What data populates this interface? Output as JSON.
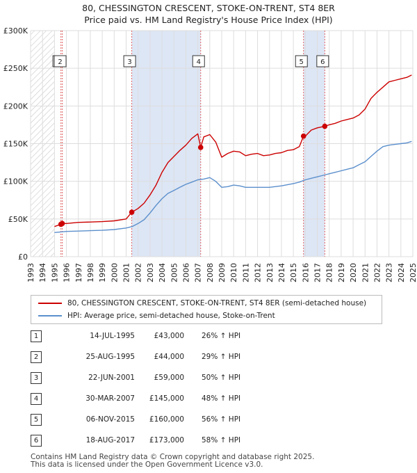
{
  "title_line1": "80, CHESSINGTON CRESCENT, STOKE-ON-TRENT, ST4 8ER",
  "title_line2": "Price paid vs. HM Land Registry's House Price Index (HPI)",
  "legend": {
    "property_label": "80, CHESSINGTON CRESCENT, STOKE-ON-TRENT, ST4 8ER (semi-detached house)",
    "hpi_label": "HPI: Average price, semi-detached house, Stoke-on-Trent"
  },
  "colors": {
    "property_line": "#cc0000",
    "hpi_line": "#5b8fcc",
    "marker_vline": "#e06060",
    "shade": "#dde6f5",
    "grid": "#dddddd"
  },
  "transactions": [
    {
      "num": "1",
      "date": "14-JUL-1995",
      "price": "£43,000",
      "hpi": "26% ↑ HPI"
    },
    {
      "num": "2",
      "date": "25-AUG-1995",
      "price": "£44,000",
      "hpi": "29% ↑ HPI"
    },
    {
      "num": "3",
      "date": "22-JUN-2001",
      "price": "£59,000",
      "hpi": "50% ↑ HPI"
    },
    {
      "num": "4",
      "date": "30-MAR-2007",
      "price": "£145,000",
      "hpi": "48% ↑ HPI"
    },
    {
      "num": "5",
      "date": "06-NOV-2015",
      "price": "£160,000",
      "hpi": "56% ↑ HPI"
    },
    {
      "num": "6",
      "date": "18-AUG-2017",
      "price": "£173,000",
      "hpi": "58% ↑ HPI"
    }
  ],
  "footer_line1": "Contains HM Land Registry data © Crown copyright and database right 2025.",
  "footer_line2": "This data is licensed under the Open Government Licence v3.0.",
  "chart_data": {
    "type": "line",
    "title": "80, CHESSINGTON CRESCENT, STOKE-ON-TRENT, ST4 8ER",
    "subtitle": "Price paid vs. HM Land Registry's House Price Index (HPI)",
    "xlabel": "",
    "ylabel": "",
    "xlim": [
      1993,
      2025
    ],
    "ylim": [
      0,
      300000
    ],
    "y_ticks": [
      {
        "value": 0,
        "label": "£0"
      },
      {
        "value": 50000,
        "label": "£50K"
      },
      {
        "value": 100000,
        "label": "£100K"
      },
      {
        "value": 150000,
        "label": "£150K"
      },
      {
        "value": 200000,
        "label": "£200K"
      },
      {
        "value": 250000,
        "label": "£250K"
      },
      {
        "value": 300000,
        "label": "£300K"
      }
    ],
    "x_ticks": [
      "1993",
      "1994",
      "1995",
      "1996",
      "1997",
      "1998",
      "1999",
      "2000",
      "2001",
      "2002",
      "2003",
      "2004",
      "2005",
      "2006",
      "2007",
      "2008",
      "2009",
      "2010",
      "2011",
      "2012",
      "2013",
      "2014",
      "2015",
      "2016",
      "2017",
      "2018",
      "2019",
      "2020",
      "2021",
      "2022",
      "2023",
      "2024",
      "2025"
    ],
    "hatch_before": 1995.0,
    "shaded_ranges": [
      [
        2001.47,
        2007.24
      ],
      [
        2015.85,
        2017.63
      ]
    ],
    "sales": [
      {
        "label": "1",
        "x": 1995.54,
        "y": 43000
      },
      {
        "label": "2",
        "x": 1995.65,
        "y": 44000
      },
      {
        "label": "3",
        "x": 2001.47,
        "y": 59000
      },
      {
        "label": "4",
        "x": 2007.24,
        "y": 145000
      },
      {
        "label": "5",
        "x": 2015.85,
        "y": 160000
      },
      {
        "label": "6",
        "x": 2017.63,
        "y": 173000
      }
    ],
    "series": [
      {
        "name": "80, CHESSINGTON CRESCENT, STOKE-ON-TRENT, ST4 8ER (semi-detached house)",
        "x": [
          1995.0,
          1995.54,
          1995.65,
          1996.0,
          1997.0,
          1998.0,
          1999.0,
          2000.0,
          2001.0,
          2001.47,
          2002.0,
          2002.5,
          2003.0,
          2003.5,
          2004.0,
          2004.5,
          2005.0,
          2005.5,
          2006.0,
          2006.5,
          2007.0,
          2007.24,
          2007.5,
          2008.0,
          2008.5,
          2009.0,
          2009.5,
          2010.0,
          2010.5,
          2011.0,
          2011.5,
          2012.0,
          2012.5,
          2013.0,
          2013.5,
          2014.0,
          2014.5,
          2015.0,
          2015.5,
          2015.85,
          2016.0,
          2016.5,
          2017.0,
          2017.63,
          2018.0,
          2018.5,
          2019.0,
          2019.5,
          2020.0,
          2020.5,
          2021.0,
          2021.5,
          2022.0,
          2022.5,
          2023.0,
          2023.5,
          2024.0,
          2024.5,
          2024.9
        ],
        "values": [
          40000,
          43000,
          44000,
          44000,
          45500,
          46000,
          46500,
          47500,
          50000,
          59000,
          64000,
          71000,
          82000,
          95000,
          112000,
          125000,
          133000,
          141000,
          148000,
          157000,
          163000,
          145000,
          159000,
          162000,
          152000,
          132000,
          137000,
          140000,
          139000,
          134000,
          136000,
          137000,
          134000,
          135000,
          137000,
          138000,
          141000,
          142000,
          146000,
          160000,
          160000,
          168000,
          171000,
          173000,
          175000,
          177000,
          180000,
          182000,
          184000,
          188000,
          196000,
          210000,
          218000,
          225000,
          232000,
          234000,
          236000,
          238000,
          241000
        ]
      },
      {
        "name": "HPI: Average price, semi-detached house, Stoke-on-Trent",
        "x": [
          1995.0,
          1996.0,
          1997.0,
          1998.0,
          1999.0,
          2000.0,
          2001.0,
          2001.5,
          2002.0,
          2002.5,
          2003.0,
          2003.5,
          2004.0,
          2004.5,
          2005.0,
          2005.5,
          2006.0,
          2006.5,
          2007.0,
          2007.5,
          2008.0,
          2008.5,
          2009.0,
          2009.5,
          2010.0,
          2010.5,
          2011.0,
          2012.0,
          2013.0,
          2014.0,
          2015.0,
          2015.5,
          2016.0,
          2016.5,
          2017.0,
          2017.5,
          2018.0,
          2018.5,
          2019.0,
          2019.5,
          2020.0,
          2020.5,
          2021.0,
          2021.5,
          2022.0,
          2022.5,
          2023.0,
          2023.5,
          2024.0,
          2024.5,
          2024.9
        ],
        "values": [
          32000,
          33500,
          34000,
          34500,
          35000,
          36000,
          38000,
          40000,
          44000,
          49000,
          58000,
          68000,
          77000,
          84000,
          88000,
          92000,
          96000,
          99000,
          102000,
          103000,
          105000,
          100000,
          92000,
          93000,
          95000,
          94000,
          92000,
          92000,
          92000,
          94000,
          97000,
          99000,
          102000,
          104000,
          106000,
          108000,
          110000,
          112000,
          114000,
          116000,
          118000,
          122000,
          126000,
          133000,
          140000,
          146000,
          148000,
          149000,
          150000,
          151000,
          153000
        ]
      }
    ]
  }
}
